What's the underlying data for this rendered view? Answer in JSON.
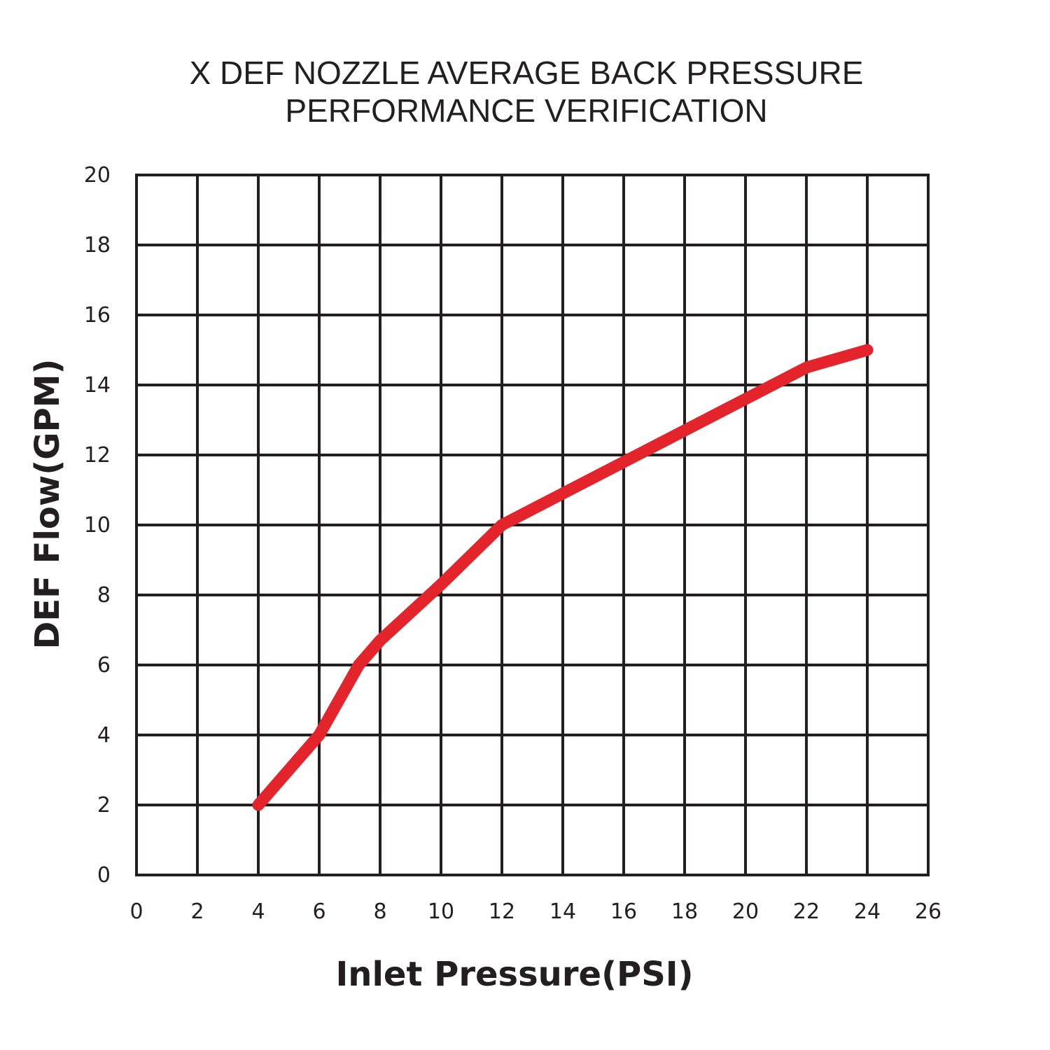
{
  "chart_data": {
    "type": "line",
    "title": [
      "X DEF NOZZLE AVERAGE BACK PRESSURE",
      "PERFORMANCE VERIFICATION"
    ],
    "xlabel": "Inlet Pressure(PSI)",
    "ylabel": "DEF Flow(GPM)",
    "xlim": [
      0,
      26
    ],
    "ylim": [
      0,
      20
    ],
    "x_ticks": [
      "0",
      "2",
      "4",
      "6",
      "8",
      "10",
      "12",
      "14",
      "16",
      "18",
      "20",
      "22",
      "24",
      "26"
    ],
    "y_ticks": [
      "0",
      "2",
      "4",
      "6",
      "8",
      "10",
      "12",
      "14",
      "16",
      "18",
      "20"
    ],
    "grid": true,
    "series": [
      {
        "x": [
          4,
          6,
          7.3,
          8,
          10,
          12,
          14,
          16,
          18,
          20,
          22,
          24
        ],
        "y": [
          2,
          4,
          6,
          6.7,
          8.3,
          10,
          10.9,
          11.8,
          12.7,
          13.6,
          14.5,
          15
        ],
        "color": "#e3242b"
      }
    ]
  }
}
